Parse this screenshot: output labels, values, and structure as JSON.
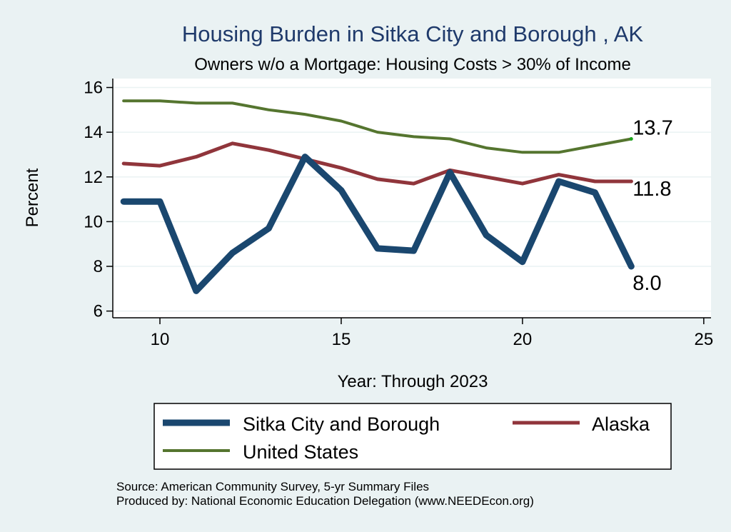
{
  "chart_data": {
    "type": "line",
    "title": "Housing Burden in Sitka City and Borough , AK",
    "subtitle": "Owners w/o a Mortgage: Housing Costs > 30% of Income",
    "xlabel": "Year: Through 2023",
    "ylabel": "Percent",
    "xlim": [
      8.7,
      25.2
    ],
    "ylim": [
      5.7,
      16.4
    ],
    "xticks": [
      10,
      15,
      20,
      25
    ],
    "yticks": [
      6,
      8,
      10,
      12,
      14,
      16
    ],
    "x": [
      9,
      10,
      11,
      12,
      13,
      14,
      15,
      16,
      17,
      18,
      19,
      20,
      21,
      22,
      23
    ],
    "series": [
      {
        "name": "Sitka City and Borough",
        "color": "#1a476f",
        "values": [
          10.9,
          10.9,
          6.9,
          8.6,
          9.7,
          12.9,
          11.4,
          8.8,
          8.7,
          12.2,
          9.4,
          8.2,
          11.8,
          11.3,
          8.0
        ],
        "end_label": "8.0"
      },
      {
        "name": "Alaska",
        "color": "#90353b",
        "values": [
          12.6,
          12.5,
          12.9,
          13.5,
          13.2,
          12.8,
          12.4,
          11.9,
          11.7,
          12.3,
          12.0,
          11.7,
          12.1,
          11.8,
          11.8
        ],
        "end_label": "11.8"
      },
      {
        "name": "United States",
        "color": "#55752f",
        "values": [
          15.4,
          15.4,
          15.3,
          15.3,
          15.0,
          14.8,
          14.5,
          14.0,
          13.8,
          13.7,
          13.3,
          13.1,
          13.1,
          13.4,
          13.7
        ],
        "end_label": "13.7"
      }
    ],
    "grid": true,
    "legend_position": "bottom"
  },
  "notes": {
    "source": "Source: American Community Survey, 5-yr Summary Files",
    "produced_by": "Produced by: National Economic Education Delegation (www.NEEDEcon.org)"
  }
}
